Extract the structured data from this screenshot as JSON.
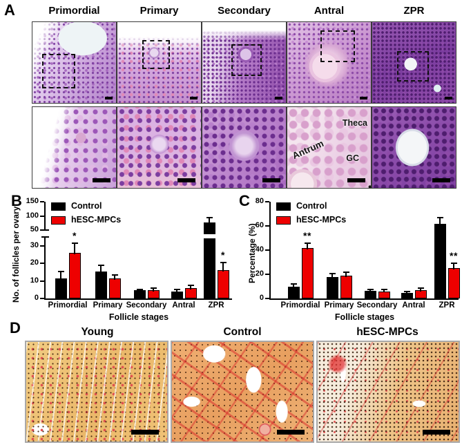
{
  "panels": {
    "a": {
      "label": "A",
      "stages": [
        "Primordial",
        "Primary",
        "Secondary",
        "Antral",
        "ZPR"
      ],
      "inset_labels": {
        "antrum": "Antrum",
        "theca": "Theca",
        "gc": "GC"
      }
    },
    "b": {
      "label": "B"
    },
    "c": {
      "label": "C"
    },
    "d": {
      "label": "D",
      "groups": [
        "Young",
        "Control",
        "hESC-MPCs"
      ]
    }
  },
  "colors": {
    "control_bar": "#000000",
    "treatment_bar": "#ee0000",
    "axis": "#000000",
    "scale_bar": "#000000"
  },
  "chart_data": [
    {
      "panel": "B",
      "type": "bar",
      "categories": [
        "Primordial",
        "Primary",
        "Secondary",
        "Antral",
        "ZPR"
      ],
      "series": [
        {
          "name": "Control",
          "color": "#000000",
          "values": [
            11.5,
            15.5,
            4.8,
            4.0,
            78
          ],
          "errors": [
            4,
            3.5,
            0.5,
            1.2,
            17
          ]
        },
        {
          "name": "hESC-MPCs",
          "color": "#ee0000",
          "values": [
            26,
            11.5,
            4.7,
            5.8,
            16
          ],
          "errors": [
            5.5,
            2,
            1.2,
            1.5,
            4.5
          ]
        }
      ],
      "significance": [
        {
          "category": "Primordial",
          "series": "hESC-MPCs",
          "label": "*"
        },
        {
          "category": "ZPR",
          "series": "hESC-MPCs",
          "label": "*"
        }
      ],
      "ylabel": "No. of follicles per ovary",
      "xlabel": "Follicle stages",
      "axis_break": true,
      "lower_range": [
        0,
        35
      ],
      "upper_range": [
        50,
        150
      ],
      "lower_ticks": [
        0,
        10,
        20,
        30
      ],
      "upper_ticks": [
        50,
        100,
        150
      ],
      "legend_position": "top-left",
      "grid": false
    },
    {
      "panel": "C",
      "type": "bar",
      "categories": [
        "Primordial",
        "Primary",
        "Secondary",
        "Antral",
        "ZPR"
      ],
      "series": [
        {
          "name": "Control",
          "color": "#000000",
          "values": [
            10,
            17.5,
            6.5,
            4.5,
            62
          ],
          "errors": [
            2,
            3,
            0.8,
            1.2,
            5
          ]
        },
        {
          "name": "hESC-MPCs",
          "color": "#ee0000",
          "values": [
            42,
            19,
            6,
            7,
            25
          ],
          "errors": [
            4,
            2.5,
            1.3,
            1.3,
            4
          ]
        }
      ],
      "significance": [
        {
          "category": "Primordial",
          "series": "hESC-MPCs",
          "label": "**"
        },
        {
          "category": "ZPR",
          "series": "hESC-MPCs",
          "label": "**"
        }
      ],
      "ylabel": "Percentage (%)",
      "xlabel": "Follicle stages",
      "axis_break": false,
      "ylim": [
        0,
        80
      ],
      "yticks": [
        0,
        20,
        40,
        60,
        80
      ],
      "legend_position": "top-left",
      "grid": false
    }
  ]
}
